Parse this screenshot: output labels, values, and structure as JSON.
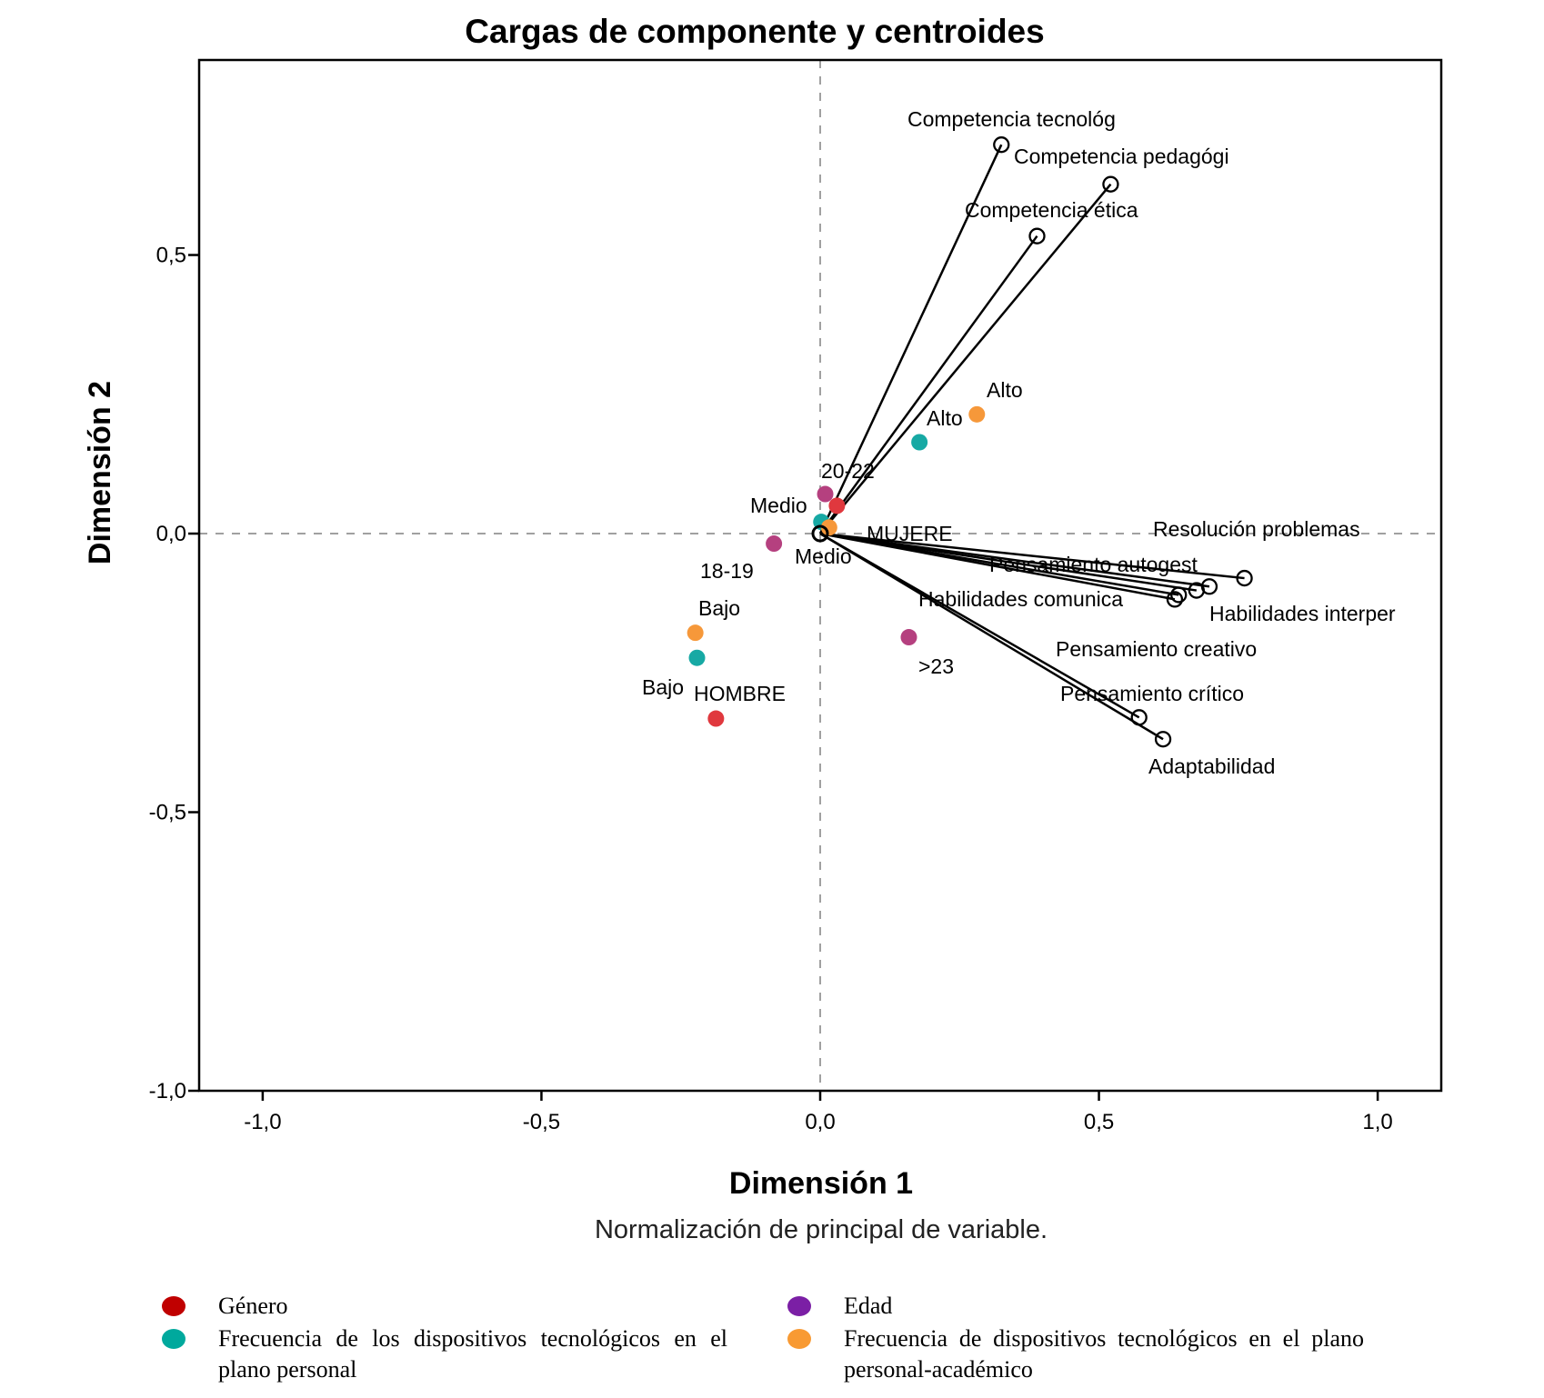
{
  "chart_data": {
    "type": "scatter",
    "title": "Cargas de componente y centroides",
    "xlabel": "Dimensión 1",
    "ylabel": "Dimensión 2",
    "note": "Normalización de principal de variable.",
    "xlim": [
      -1.114,
      1.114
    ],
    "ylim": [
      -1.0,
      0.85
    ],
    "xticks": [
      {
        "v": -1.0,
        "label": "-1,0"
      },
      {
        "v": -0.5,
        "label": "-0,5"
      },
      {
        "v": 0.0,
        "label": "0,0"
      },
      {
        "v": 0.5,
        "label": "0,5"
      },
      {
        "v": 1.0,
        "label": "1,0"
      }
    ],
    "yticks": [
      {
        "v": 0.5,
        "label": "0,5"
      },
      {
        "v": 0.0,
        "label": "0,0"
      },
      {
        "v": -0.5,
        "label": "-0,5"
      },
      {
        "v": -1.0,
        "label": "-1,0"
      }
    ],
    "reference_lines": {
      "x": 0,
      "y": 0,
      "style": "dashed"
    },
    "loadings": [
      {
        "label": "Competencia tecnológ",
        "x": 0.325,
        "y": 0.698
      },
      {
        "label": "Competencia pedagógi",
        "x": 0.521,
        "y": 0.627
      },
      {
        "label": "Competencia ética",
        "x": 0.389,
        "y": 0.534
      },
      {
        "label": "Resolución problemas",
        "x": 0.761,
        "y": -0.08
      },
      {
        "label": "Pensamiento autogest",
        "x": 0.675,
        "y": -0.102
      },
      {
        "label": "Habilidades comunica",
        "x": 0.636,
        "y": -0.118
      },
      {
        "label": "Habilidades interper",
        "x": 0.698,
        "y": -0.095
      },
      {
        "label": "Pensamiento creativo",
        "x": 0.643,
        "y": -0.11
      },
      {
        "label": "Pensamiento crítico",
        "x": 0.572,
        "y": -0.33
      },
      {
        "label": "Adaptabilidad",
        "x": 0.615,
        "y": -0.369
      }
    ],
    "centroid_groups": [
      {
        "name": "Género",
        "color": "#e0383e",
        "legend_color": "#c00000",
        "points": [
          {
            "label": "HOMBRE",
            "x": -0.187,
            "y": -0.332
          },
          {
            "label": "MUJERE",
            "x": 0.03,
            "y": 0.05
          }
        ]
      },
      {
        "name": "Edad",
        "color": "#b5407f",
        "legend_color": "#7b1fa5",
        "points": [
          {
            "label": "20-22",
            "x": 0.009,
            "y": 0.071
          },
          {
            "label": "18-19",
            "x": -0.083,
            "y": -0.018
          },
          {
            "label": ">23",
            "x": 0.159,
            "y": -0.186
          }
        ]
      },
      {
        "name": "Frecuencia de los dispositivos tecnológicos en el plano personal",
        "color": "#17a9a4",
        "legend_color": "#00a99d",
        "points": [
          {
            "label": "Alto",
            "x": 0.178,
            "y": 0.164
          },
          {
            "label": "Medio",
            "x": 0.002,
            "y": 0.021
          },
          {
            "label": "Bajo",
            "x": -0.221,
            "y": -0.223
          }
        ]
      },
      {
        "name": "Frecuencia de dispositivos tecnológicos en el plano personal-académico",
        "color": "#f6983a",
        "legend_color": "#f89a33",
        "points": [
          {
            "label": "Alto",
            "x": 0.281,
            "y": 0.214
          },
          {
            "label": "Medio",
            "x": 0.016,
            "y": 0.011
          },
          {
            "label": "Bajo",
            "x": -0.224,
            "y": -0.178
          }
        ]
      }
    ]
  }
}
